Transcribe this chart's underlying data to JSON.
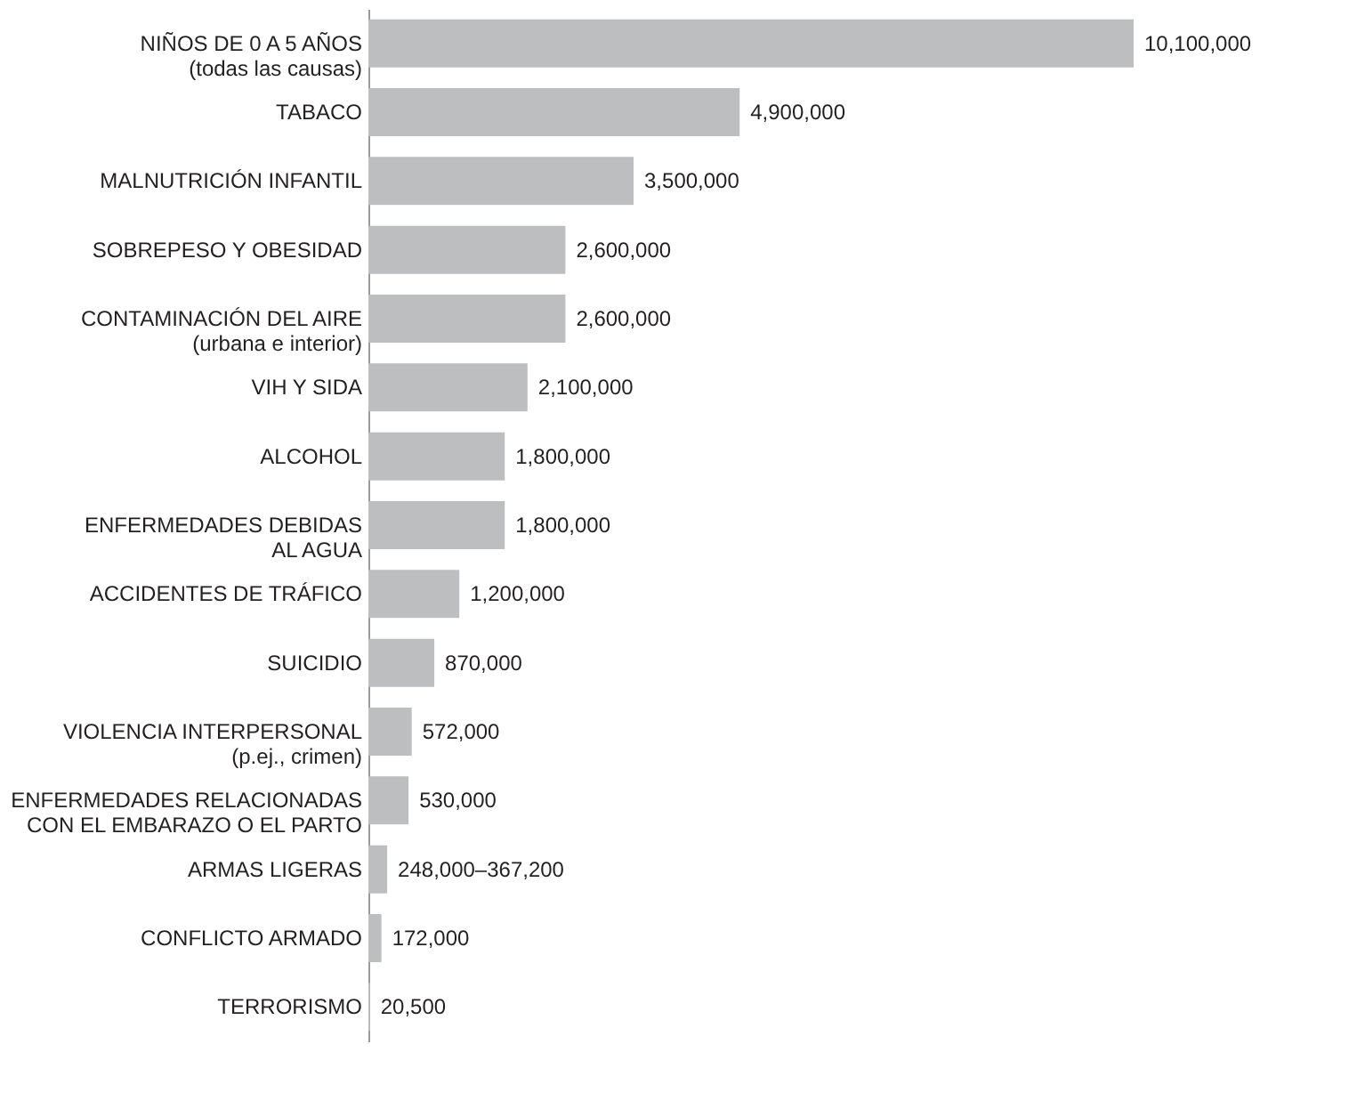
{
  "chart_data": {
    "type": "bar",
    "orientation": "horizontal",
    "categories": [
      "NIÑOS DE 0 A 5 AÑOS\n(todas las causas)",
      "TABACO",
      "MALNUTRICIÓN INFANTIL",
      "SOBREPESO Y OBESIDAD",
      "CONTAMINACIÓN DEL AIRE\n(urbana e interior)",
      "VIH Y SIDA",
      "ALCOHOL",
      "ENFERMEDADES DEBIDAS\nAL AGUA",
      "ACCIDENTES DE TRÁFICO",
      "SUICIDIO",
      "VIOLENCIA INTERPERSONAL\n(p.ej., crimen)",
      "ENFERMEDADES RELACIONADAS\nCON EL EMBARAZO O EL PARTO",
      "ARMAS LIGERAS",
      "CONFLICTO ARMADO",
      "TERRORISMO"
    ],
    "values": [
      10100000,
      4900000,
      3500000,
      2600000,
      2600000,
      2100000,
      1800000,
      1800000,
      1200000,
      870000,
      572000,
      530000,
      248000,
      172000,
      20500
    ],
    "value_labels": [
      "10,100,000",
      "4,900,000",
      "3,500,000",
      "2,600,000",
      "2,600,000",
      "2,100,000",
      "1,800,000",
      "1,800,000",
      "1,200,000",
      "870,000",
      "572,000",
      "530,000",
      "248,000–367,200",
      "172,000",
      "20,500"
    ],
    "color": "#bcbec0"
  }
}
